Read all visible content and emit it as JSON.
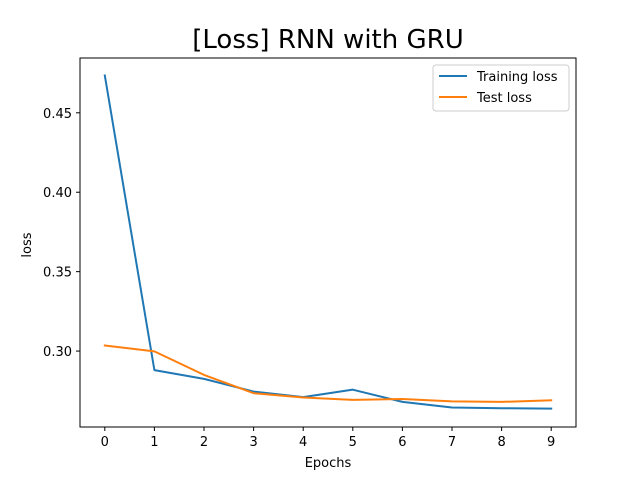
{
  "chart_data": {
    "type": "line",
    "title": "[Loss] RNN with GRU",
    "xlabel": "Epochs",
    "ylabel": "loss",
    "x": [
      0,
      1,
      2,
      3,
      4,
      5,
      6,
      7,
      8,
      9
    ],
    "series": [
      {
        "name": "Training loss",
        "color": "#1f77b4",
        "values": [
          0.4735,
          0.288,
          0.2825,
          0.2745,
          0.271,
          0.2757,
          0.268,
          0.2645,
          0.264,
          0.2638
        ]
      },
      {
        "name": "Test loss",
        "color": "#ff7f0e",
        "values": [
          0.3035,
          0.2998,
          0.285,
          0.2735,
          0.2708,
          0.2693,
          0.2698,
          0.2683,
          0.268,
          0.269
        ]
      }
    ],
    "xlim": [
      -0.5,
      9.5
    ],
    "ylim": [
      0.2522,
      0.4845
    ],
    "xticks": [
      0,
      1,
      2,
      3,
      4,
      5,
      6,
      7,
      8,
      9
    ],
    "xtick_labels": [
      "0",
      "1",
      "2",
      "3",
      "4",
      "5",
      "6",
      "7",
      "8",
      "9"
    ],
    "yticks": [
      0.3,
      0.35,
      0.4,
      0.45
    ],
    "ytick_labels": [
      "0.30",
      "0.35",
      "0.40",
      "0.45"
    ],
    "grid": false,
    "legend_position": "top-right"
  }
}
